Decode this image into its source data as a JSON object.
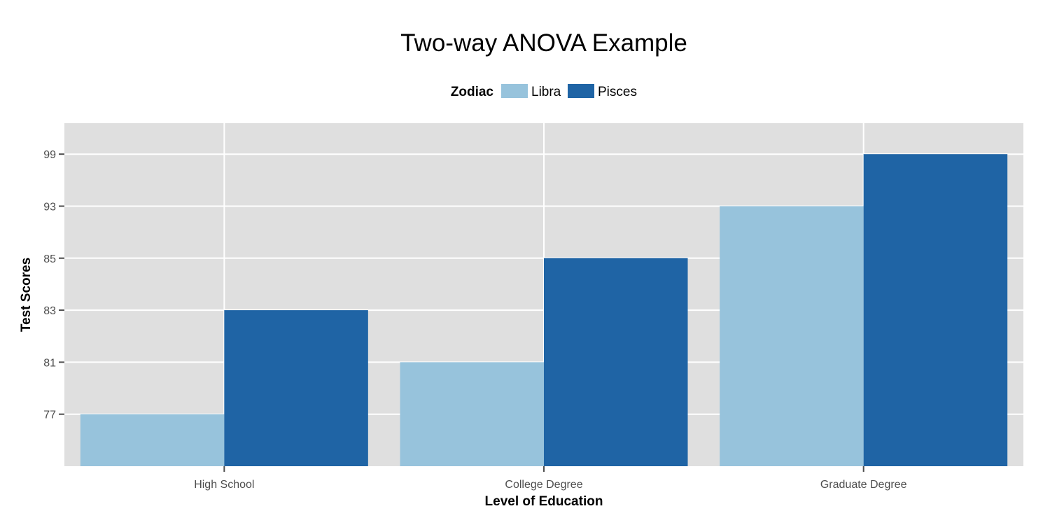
{
  "chart_data": {
    "type": "bar",
    "title": "Two-way ANOVA Example",
    "xlabel": "Level of Education",
    "ylabel": "Test Scores",
    "categories": [
      "High School",
      "College Degree",
      "Graduate Degree"
    ],
    "y_ticks": [
      "77",
      "81",
      "83",
      "85",
      "93",
      "99"
    ],
    "y_scale": "discrete",
    "grid": true,
    "legend": {
      "title": "Zodiac",
      "position": "top"
    },
    "series": [
      {
        "name": "Libra",
        "color": "#97c3dc",
        "values": [
          77,
          81,
          93
        ]
      },
      {
        "name": "Pisces",
        "color": "#1f64a5",
        "values": [
          83,
          85,
          99
        ]
      }
    ],
    "panel_color": "#dfdfdf",
    "grid_color": "#ffffff"
  }
}
